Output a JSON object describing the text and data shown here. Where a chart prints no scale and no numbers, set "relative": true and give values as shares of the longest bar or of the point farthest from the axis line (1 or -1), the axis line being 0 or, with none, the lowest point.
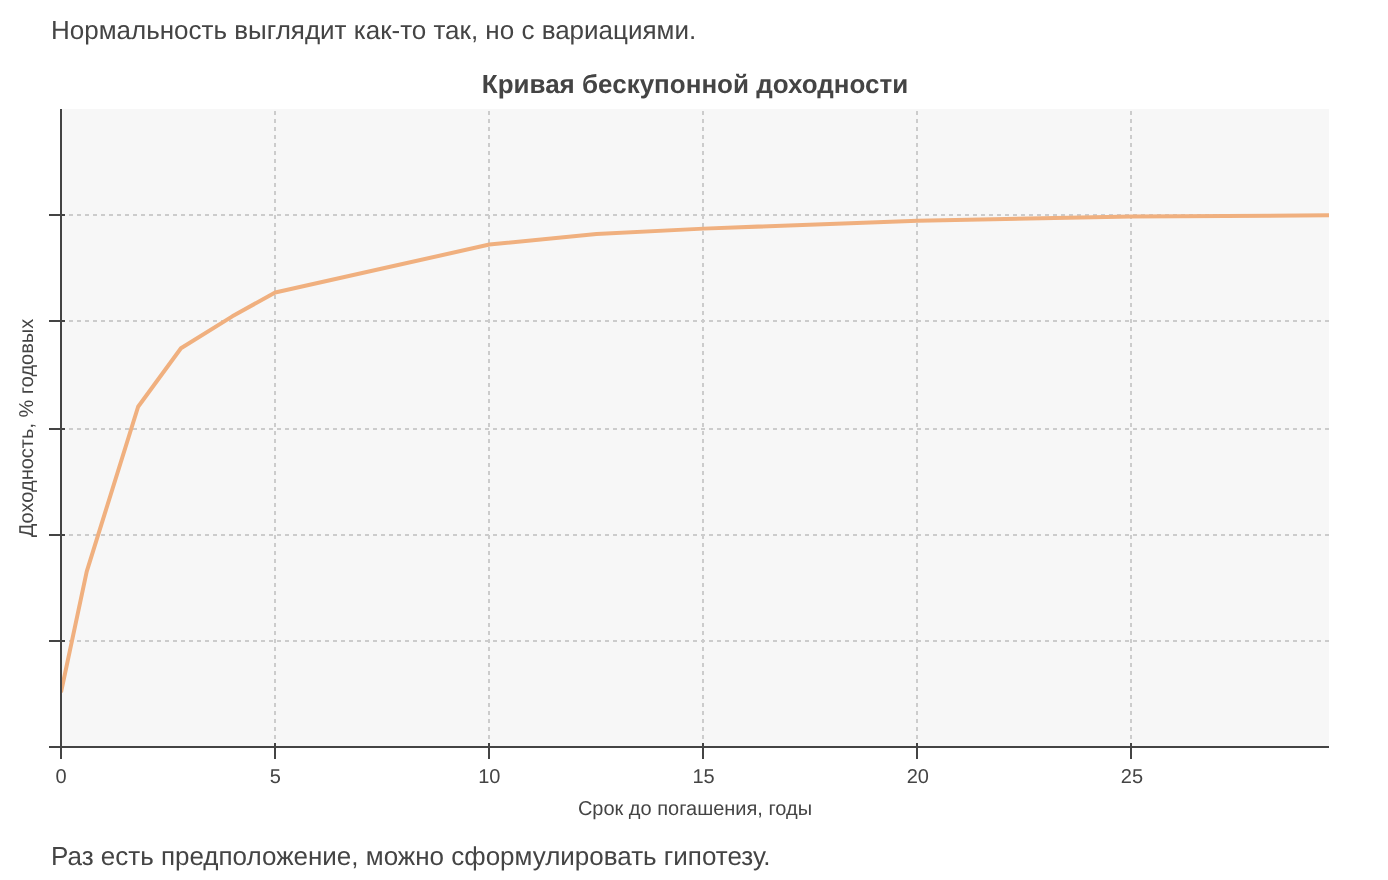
{
  "chart_data": {
    "type": "line",
    "title": "Кривая бескупонной доходности",
    "xlabel": "Срок до погашения, годы",
    "ylabel": "Доходность, % годовых",
    "annotations": [
      "Нормальность выглядит как-то так, но с вариациями.",
      "Раз есть предположение, можно сформулировать гипотезу."
    ],
    "relative": true,
    "x": [
      0,
      0.6,
      1.8,
      2.8,
      4,
      5,
      7.5,
      10,
      12.5,
      15,
      20,
      25,
      29.6
    ],
    "series": [
      {
        "color": "#f0b07f",
        "values": [
          0.103,
          0.33,
          0.64,
          0.75,
          0.81,
          0.855,
          0.9,
          0.945,
          0.965,
          0.975,
          0.99,
          0.998,
          1.0
        ]
      }
    ],
    "xlim": [
      0,
      29.6
    ],
    "xticks": [
      0,
      5,
      10,
      15,
      20,
      25
    ],
    "grid": true,
    "marker": "none",
    "line_style": "solid"
  }
}
